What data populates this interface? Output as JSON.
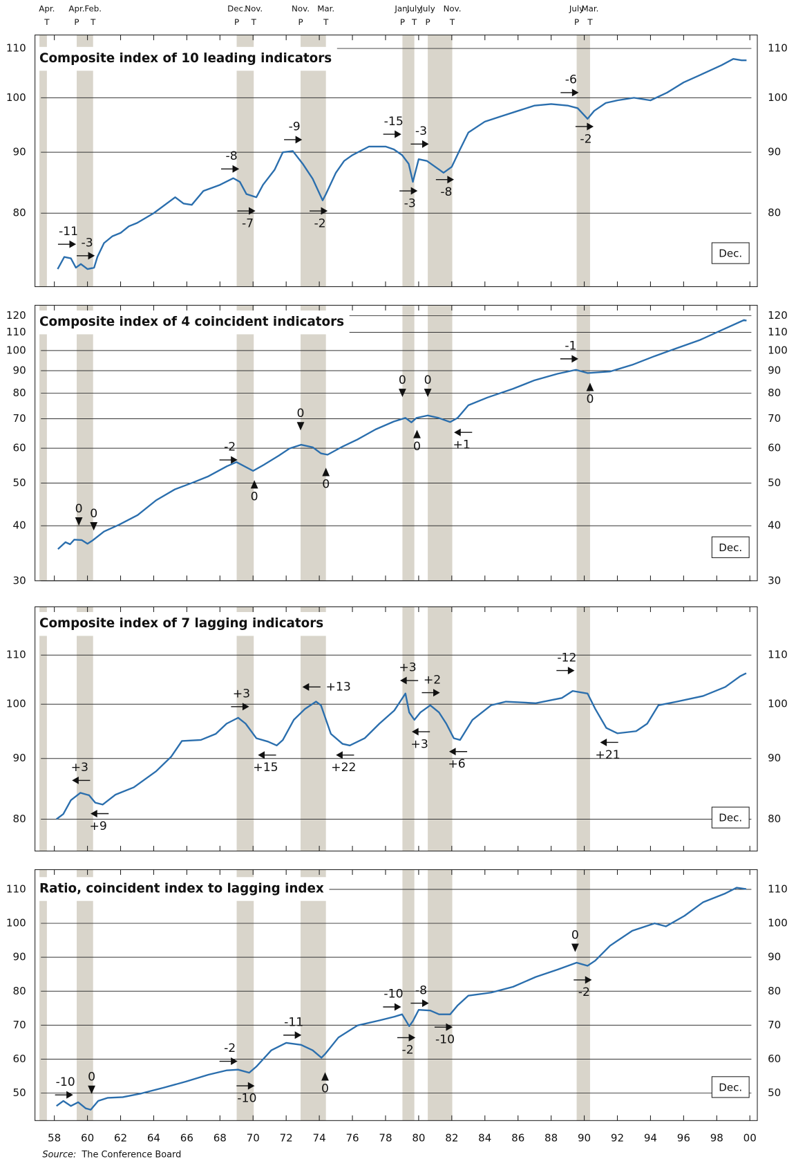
{
  "turning_points": [
    {
      "x": 1957.55,
      "month": "Apr.",
      "letter": "T"
    },
    {
      "x": 1959.35,
      "month": "Apr.",
      "letter": "P"
    },
    {
      "x": 1960.34,
      "month": "Feb.",
      "letter": "T"
    },
    {
      "x": 1969.01,
      "month": "Dec.",
      "letter": "P"
    },
    {
      "x": 1970.04,
      "month": "Nov.",
      "letter": "T"
    },
    {
      "x": 1972.87,
      "month": "Nov.",
      "letter": "P"
    },
    {
      "x": 1974.4,
      "month": "Mar.",
      "letter": "T"
    },
    {
      "x": 1979.02,
      "month": "Jan.",
      "letter": "P"
    },
    {
      "x": 1979.74,
      "month": "July",
      "letter": "T"
    },
    {
      "x": 1980.55,
      "month": "July",
      "letter": "P"
    },
    {
      "x": 1982.03,
      "month": "Nov.",
      "letter": "T"
    },
    {
      "x": 1989.54,
      "month": "July",
      "letter": "P"
    },
    {
      "x": 1990.35,
      "month": "Mar.",
      "letter": "T"
    }
  ],
  "shaded_periods": [
    [
      1957.1,
      1957.55
    ],
    [
      1959.35,
      1960.34
    ],
    [
      1969.01,
      1970.04
    ],
    [
      1972.87,
      1974.4
    ],
    [
      1979.02,
      1979.74
    ],
    [
      1980.55,
      1982.03
    ],
    [
      1989.54,
      1990.35
    ]
  ],
  "band_color": "#d9d5cb",
  "source_label": "Source:",
  "source": "The Conference Board",
  "chart_data": [
    {
      "type": "line",
      "title": "Composite index of 10 leading indicators",
      "note": "Dec.",
      "log_scale": true,
      "color": "#2a6ead",
      "xlim": [
        1956.83,
        2000.45
      ],
      "ylim": [
        69.4,
        112.9
      ],
      "yticks": [
        80,
        90,
        100,
        110
      ],
      "grid": true,
      "x": [
        1958.2,
        1958.6,
        1959.0,
        1959.3,
        1959.6,
        1960.0,
        1960.4,
        1960.6,
        1961.0,
        1961.5,
        1962.0,
        1962.5,
        1963.0,
        1964.0,
        1965.3,
        1965.8,
        1966.3,
        1967.0,
        1968.0,
        1968.8,
        1969.2,
        1969.6,
        1970.2,
        1970.6,
        1971.3,
        1971.8,
        1972.4,
        1973.0,
        1973.6,
        1974.2,
        1974.4,
        1975.0,
        1975.5,
        1976.0,
        1977.0,
        1978.0,
        1978.5,
        1979.0,
        1979.4,
        1979.65,
        1980.0,
        1980.5,
        1981.0,
        1981.5,
        1982.0,
        1982.5,
        1983.0,
        1984.0,
        1985.0,
        1986.0,
        1987.0,
        1988.0,
        1989.0,
        1989.6,
        1990.2,
        1990.6,
        1991.3,
        1992.0,
        1993.0,
        1994.0,
        1995.0,
        1996.0,
        1997.0,
        1998.3,
        1999.0,
        1999.5,
        1999.8
      ],
      "values": [
        71.8,
        73.5,
        73.3,
        72.0,
        72.5,
        71.8,
        72.0,
        73.5,
        75.5,
        76.5,
        77,
        78,
        78.5,
        80,
        82.5,
        81.5,
        81.3,
        83.5,
        84.5,
        85.6,
        85,
        83,
        82.5,
        84.5,
        87,
        90,
        90.2,
        88,
        85.5,
        82,
        83,
        86.5,
        88.5,
        89.5,
        91,
        91,
        90.5,
        89.5,
        88,
        85,
        88.8,
        88.5,
        87.5,
        86.5,
        87.5,
        90.5,
        93.5,
        95.5,
        96.5,
        97.5,
        98.5,
        98.8,
        98.5,
        98,
        96,
        97.5,
        99,
        99.5,
        100,
        99.5,
        101,
        103,
        104.5,
        106.5,
        107.8,
        107.5,
        107.5
      ],
      "annotations": [
        {
          "text": "-11",
          "x": 1958.85,
          "y": 77.2,
          "arrow": "right",
          "side": "below"
        },
        {
          "text": "-3",
          "x": 1959.98,
          "y": 75.5,
          "arrow": "right",
          "side": "below"
        },
        {
          "text": "-8",
          "x": 1968.7,
          "y": 89.3,
          "arrow": "right",
          "side": "below"
        },
        {
          "text": "-7",
          "x": 1969.68,
          "y": 78.4,
          "arrow": "right",
          "side": "above"
        },
        {
          "text": "-9",
          "x": 1972.5,
          "y": 94.5,
          "arrow": "right",
          "side": "below"
        },
        {
          "text": "-2",
          "x": 1974.04,
          "y": 78.4,
          "arrow": "right",
          "side": "above"
        },
        {
          "text": "-15",
          "x": 1978.49,
          "y": 95.5,
          "arrow": "right",
          "side": "below"
        },
        {
          "text": "-3",
          "x": 1980.15,
          "y": 93.7,
          "arrow": "right",
          "side": "below"
        },
        {
          "text": "-3",
          "x": 1979.47,
          "y": 81.5,
          "arrow": "right",
          "side": "above"
        },
        {
          "text": "-8",
          "x": 1981.67,
          "y": 83.3,
          "arrow": "right",
          "side": "above"
        },
        {
          "text": "-6",
          "x": 1989.2,
          "y": 103.5,
          "arrow": "right",
          "side": "below"
        },
        {
          "text": "-2",
          "x": 1990.1,
          "y": 92.3,
          "arrow": "right",
          "side": "above"
        }
      ]
    },
    {
      "type": "line",
      "title": "Composite index of 4 coincident indicators",
      "note": "Dec.",
      "log_scale": true,
      "color": "#2a6ead",
      "xlim": [
        1956.83,
        2000.45
      ],
      "ylim": [
        30,
        126.7
      ],
      "yticks": [
        30,
        40,
        50,
        60,
        70,
        80,
        90,
        100,
        110,
        120
      ],
      "grid": true,
      "x": [
        1958.22,
        1958.67,
        1958.95,
        1959.2,
        1959.66,
        1960.0,
        1960.34,
        1961.0,
        1961.9,
        1963.03,
        1964.15,
        1965.28,
        1966.4,
        1967.3,
        1968.42,
        1969.0,
        1970.0,
        1970.65,
        1971.55,
        1972.2,
        1972.9,
        1973.6,
        1974.1,
        1974.5,
        1975.4,
        1976.3,
        1977.4,
        1978.5,
        1979.2,
        1979.56,
        1979.87,
        1980.55,
        1981.2,
        1981.9,
        1982.35,
        1983.0,
        1984.15,
        1985.7,
        1987.0,
        1988.4,
        1989.5,
        1990.2,
        1991.55,
        1992.9,
        1994.25,
        1995.6,
        1997.0,
        1998.3,
        1999.65,
        1999.8
      ],
      "values": [
        35.4,
        36.7,
        36.3,
        37.2,
        37.1,
        36.4,
        37.1,
        38.8,
        40.2,
        42.3,
        45.7,
        48.4,
        50.2,
        51.8,
        54.6,
        55.8,
        53.3,
        55,
        57.7,
        59.9,
        61.1,
        60.3,
        58.4,
        58,
        60.5,
        62.8,
        66.2,
        69,
        70.3,
        68.7,
        70.3,
        71.2,
        70.3,
        68.8,
        70.3,
        75.1,
        78.2,
        81.9,
        85.6,
        88.6,
        90.4,
        88.9,
        89.6,
        92.8,
        97.1,
        101.3,
        105.7,
        111.3,
        117.3,
        116.9
      ],
      "annotations": [
        {
          "text": "0",
          "x": 1959.48,
          "y": 43.7,
          "arrow": "down",
          "side": "below"
        },
        {
          "text": "0",
          "x": 1960.38,
          "y": 42.6,
          "arrow": "down",
          "side": "below"
        },
        {
          "text": "-2",
          "x": 1968.6,
          "y": 60.3,
          "arrow": "right",
          "side": "below"
        },
        {
          "text": "0",
          "x": 1970.08,
          "y": 46.5,
          "arrow": "up",
          "side": "above"
        },
        {
          "text": "0",
          "x": 1972.87,
          "y": 71.9,
          "arrow": "down",
          "side": "below"
        },
        {
          "text": "0",
          "x": 1974.4,
          "y": 49.6,
          "arrow": "up",
          "side": "above"
        },
        {
          "text": "0",
          "x": 1979.02,
          "y": 85.6,
          "arrow": "down",
          "side": "below"
        },
        {
          "text": "0",
          "x": 1980.55,
          "y": 85.6,
          "arrow": "down",
          "side": "below"
        },
        {
          "text": "0",
          "x": 1979.9,
          "y": 60.5,
          "arrow": "up",
          "side": "above"
        },
        {
          "text": "+1",
          "x": 1982.6,
          "y": 61.0,
          "arrow": "left",
          "side": "above"
        },
        {
          "text": "-1",
          "x": 1989.18,
          "y": 102.3,
          "arrow": "right",
          "side": "below"
        },
        {
          "text": "0",
          "x": 1990.35,
          "y": 77.4,
          "arrow": "up",
          "side": "above"
        }
      ]
    },
    {
      "type": "line",
      "title": "Composite index of 7 lagging indicators",
      "note": "Dec.",
      "log_scale": true,
      "color": "#2a6ead",
      "xlim": [
        1956.83,
        2000.45
      ],
      "ylim": [
        75.2,
        120.8
      ],
      "yticks": [
        80,
        90,
        100,
        110
      ],
      "grid": true,
      "x": [
        1958.13,
        1958.54,
        1959.0,
        1959.57,
        1960.1,
        1960.47,
        1960.92,
        1961.7,
        1962.8,
        1964.15,
        1965.05,
        1965.7,
        1966.85,
        1967.75,
        1968.4,
        1969.1,
        1969.55,
        1970.2,
        1970.9,
        1971.43,
        1971.8,
        1972.46,
        1973.14,
        1973.8,
        1974.1,
        1974.7,
        1975.4,
        1975.84,
        1976.74,
        1977.63,
        1978.53,
        1979.2,
        1979.43,
        1979.74,
        1980.1,
        1980.7,
        1981.23,
        1981.67,
        1982.12,
        1982.5,
        1983.25,
        1984.37,
        1985.27,
        1987.07,
        1988.64,
        1989.3,
        1990.2,
        1990.66,
        1991.33,
        1992.0,
        1993.13,
        1993.8,
        1994.48,
        1995.6,
        1997.17,
        1998.52,
        1999.42,
        1999.78
      ],
      "values": [
        80,
        80.8,
        83,
        84.2,
        83.8,
        82.6,
        82.3,
        83.9,
        85.1,
        87.8,
        90.3,
        93.1,
        93.3,
        94.4,
        96.3,
        97.4,
        96.3,
        93.6,
        93.0,
        92.3,
        93.3,
        97,
        99.1,
        100.5,
        99.8,
        94.4,
        92.6,
        92.3,
        93.6,
        96.3,
        98.8,
        102.1,
        98.4,
        97.0,
        98.4,
        99.8,
        98.4,
        96.3,
        93.6,
        93.3,
        97,
        99.8,
        100.5,
        100.2,
        101.2,
        102.6,
        102.1,
        99.1,
        95.5,
        94.5,
        94.9,
        96.3,
        99.8,
        100.5,
        101.6,
        103.4,
        105.6,
        106.2
      ],
      "annotations": [
        {
          "text": "+3",
          "x": 1959.53,
          "y": 88.4,
          "arrow": "left",
          "side": "below"
        },
        {
          "text": "+9",
          "x": 1960.65,
          "y": 78.9,
          "arrow": "left",
          "side": "above"
        },
        {
          "text": "+3",
          "x": 1969.3,
          "y": 102.0,
          "arrow": "right",
          "side": "below"
        },
        {
          "text": "+15",
          "x": 1970.76,
          "y": 88.4,
          "arrow": "left",
          "side": "above"
        },
        {
          "text": "+13",
          "x": 1975.15,
          "y": 103.4,
          "arrow": "left",
          "side": "left"
        },
        {
          "text": "+22",
          "x": 1975.47,
          "y": 88.4,
          "arrow": "left",
          "side": "above"
        },
        {
          "text": "+3",
          "x": 1979.34,
          "y": 107.3,
          "arrow": "left",
          "side": "below"
        },
        {
          "text": "+2",
          "x": 1980.82,
          "y": 104.8,
          "arrow": "right",
          "side": "below"
        },
        {
          "text": "+3",
          "x": 1980.05,
          "y": 92.5,
          "arrow": "left",
          "side": "above"
        },
        {
          "text": "+6",
          "x": 1982.3,
          "y": 89.0,
          "arrow": "left",
          "side": "above"
        },
        {
          "text": "-12",
          "x": 1988.95,
          "y": 109.4,
          "arrow": "right",
          "side": "below"
        },
        {
          "text": "+21",
          "x": 1991.42,
          "y": 90.6,
          "arrow": "left",
          "side": "above"
        }
      ]
    },
    {
      "type": "line",
      "title": "Ratio, coincident index to lagging index",
      "note": "Dec.",
      "log_scale": false,
      "color": "#2a6ead",
      "xlim": [
        1956.83,
        2000.45
      ],
      "ylim": [
        41.9,
        115.8
      ],
      "yticks": [
        50,
        60,
        70,
        80,
        90,
        100,
        110
      ],
      "grid": true,
      "xticks": [
        {
          "value": 1958,
          "label": "58"
        },
        {
          "value": 1960,
          "label": "60"
        },
        {
          "value": 1962,
          "label": "62"
        },
        {
          "value": 1964,
          "label": "64"
        },
        {
          "value": 1966,
          "label": "66"
        },
        {
          "value": 1968,
          "label": "68"
        },
        {
          "value": 1970,
          "label": "70"
        },
        {
          "value": 1972,
          "label": "72"
        },
        {
          "value": 1974,
          "label": "74"
        },
        {
          "value": 1976,
          "label": "76"
        },
        {
          "value": 1978,
          "label": "78"
        },
        {
          "value": 1980,
          "label": "80"
        },
        {
          "value": 1982,
          "label": "82"
        },
        {
          "value": 1984,
          "label": "84"
        },
        {
          "value": 1986,
          "label": "86"
        },
        {
          "value": 1988,
          "label": "88"
        },
        {
          "value": 1990,
          "label": "90"
        },
        {
          "value": 1992,
          "label": "92"
        },
        {
          "value": 1994,
          "label": "94"
        },
        {
          "value": 1996,
          "label": "96"
        },
        {
          "value": 1998,
          "label": "98"
        },
        {
          "value": 2000,
          "label": "00"
        }
      ],
      "x": [
        1958.13,
        1958.54,
        1959.0,
        1959.44,
        1959.9,
        1960.2,
        1960.65,
        1961.23,
        1962.13,
        1963.26,
        1964.6,
        1965.95,
        1967.3,
        1968.42,
        1969.1,
        1969.77,
        1970.2,
        1971.1,
        1972.0,
        1972.9,
        1973.6,
        1974.13,
        1974.35,
        1975.16,
        1976.3,
        1977.63,
        1978.53,
        1979.0,
        1979.43,
        1979.65,
        1980.0,
        1980.7,
        1981.23,
        1981.9,
        1982.35,
        1983.0,
        1984.37,
        1985.7,
        1987.07,
        1988.4,
        1989.54,
        1990.2,
        1990.66,
        1991.56,
        1992.9,
        1994.25,
        1994.93,
        1996.05,
        1997.17,
        1998.52,
        1999.2,
        1999.78
      ],
      "values": [
        46.2,
        47.7,
        46.2,
        47.3,
        45.5,
        45.1,
        47.7,
        48.6,
        48.8,
        49.9,
        51.6,
        53.4,
        55.4,
        56.7,
        56.9,
        56,
        57.8,
        62.6,
        64.8,
        64.2,
        62.6,
        60.4,
        61.5,
        66.4,
        69.9,
        71.4,
        72.5,
        73.2,
        69.7,
        71.2,
        74.5,
        74.3,
        73.2,
        73.2,
        75.8,
        78.7,
        79.6,
        81.3,
        84.2,
        86.4,
        88.4,
        87.5,
        89,
        93.4,
        97.8,
        100,
        99.1,
        102.2,
        106.2,
        108.8,
        110.5,
        110.1
      ],
      "annotations": [
        {
          "text": "-10",
          "x": 1958.67,
          "y": 53.2,
          "arrow": "right",
          "side": "below"
        },
        {
          "text": "0",
          "x": 1960.25,
          "y": 54.7,
          "arrow": "down",
          "side": "below"
        },
        {
          "text": "-2",
          "x": 1968.6,
          "y": 63.1,
          "arrow": "right",
          "side": "below"
        },
        {
          "text": "-10",
          "x": 1969.63,
          "y": 48.4,
          "arrow": "right",
          "side": "above"
        },
        {
          "text": "-11",
          "x": 1972.46,
          "y": 70.8,
          "arrow": "right",
          "side": "below"
        },
        {
          "text": "0",
          "x": 1974.35,
          "y": 51.2,
          "arrow": "up",
          "side": "above"
        },
        {
          "text": "-10",
          "x": 1978.48,
          "y": 79.1,
          "arrow": "right",
          "side": "below"
        },
        {
          "text": "-8",
          "x": 1980.15,
          "y": 80.2,
          "arrow": "right",
          "side": "below"
        },
        {
          "text": "-2",
          "x": 1979.34,
          "y": 62.6,
          "arrow": "right",
          "side": "above"
        },
        {
          "text": "-10",
          "x": 1981.59,
          "y": 65.7,
          "arrow": "right",
          "side": "above"
        },
        {
          "text": "0",
          "x": 1989.45,
          "y": 96.5,
          "arrow": "down",
          "side": "below"
        },
        {
          "text": "-2",
          "x": 1989.99,
          "y": 79.6,
          "arrow": "right",
          "side": "above"
        }
      ]
    }
  ]
}
